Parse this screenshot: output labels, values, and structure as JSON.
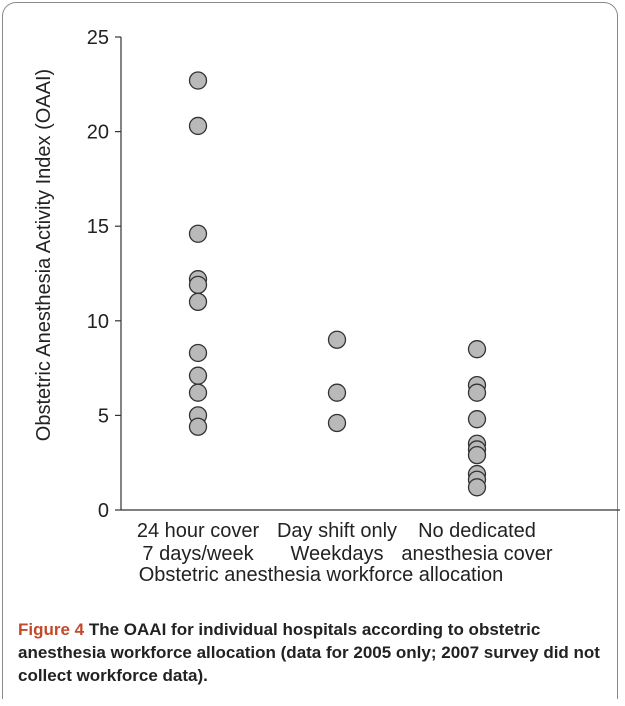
{
  "chart_data": {
    "type": "scatter",
    "xlabel": "Obstetric anesthesia workforce allocation",
    "ylabel": "Obstetric Anesthesia Activity Index (OAAI)",
    "ylim": [
      0,
      25
    ],
    "yticks": [
      0,
      5,
      10,
      15,
      20,
      25
    ],
    "grid": false,
    "categories": [
      [
        "24 hour cover",
        "7 days/week"
      ],
      [
        "Day shift only",
        "Weekdays"
      ],
      [
        "No dedicated",
        "anesthesia cover"
      ]
    ],
    "series": [
      {
        "category_index": 0,
        "values": [
          22.7,
          20.3,
          14.6,
          12.2,
          11.9,
          11.0,
          8.3,
          7.1,
          6.2,
          5.0,
          4.4
        ]
      },
      {
        "category_index": 1,
        "values": [
          9.0,
          6.2,
          4.6
        ]
      },
      {
        "category_index": 2,
        "values": [
          8.5,
          6.6,
          6.2,
          4.8,
          3.5,
          3.2,
          2.9,
          1.9,
          1.6,
          1.2
        ]
      }
    ],
    "marker_fill": "#b9b9b9",
    "marker_stroke": "#333333"
  },
  "caption": {
    "label": "Figure 4",
    "text": "The OAAI for individual hospitals according to obstetric anesthesia workforce allocation (data for 2005 only; 2007 survey did not collect workforce data)."
  }
}
